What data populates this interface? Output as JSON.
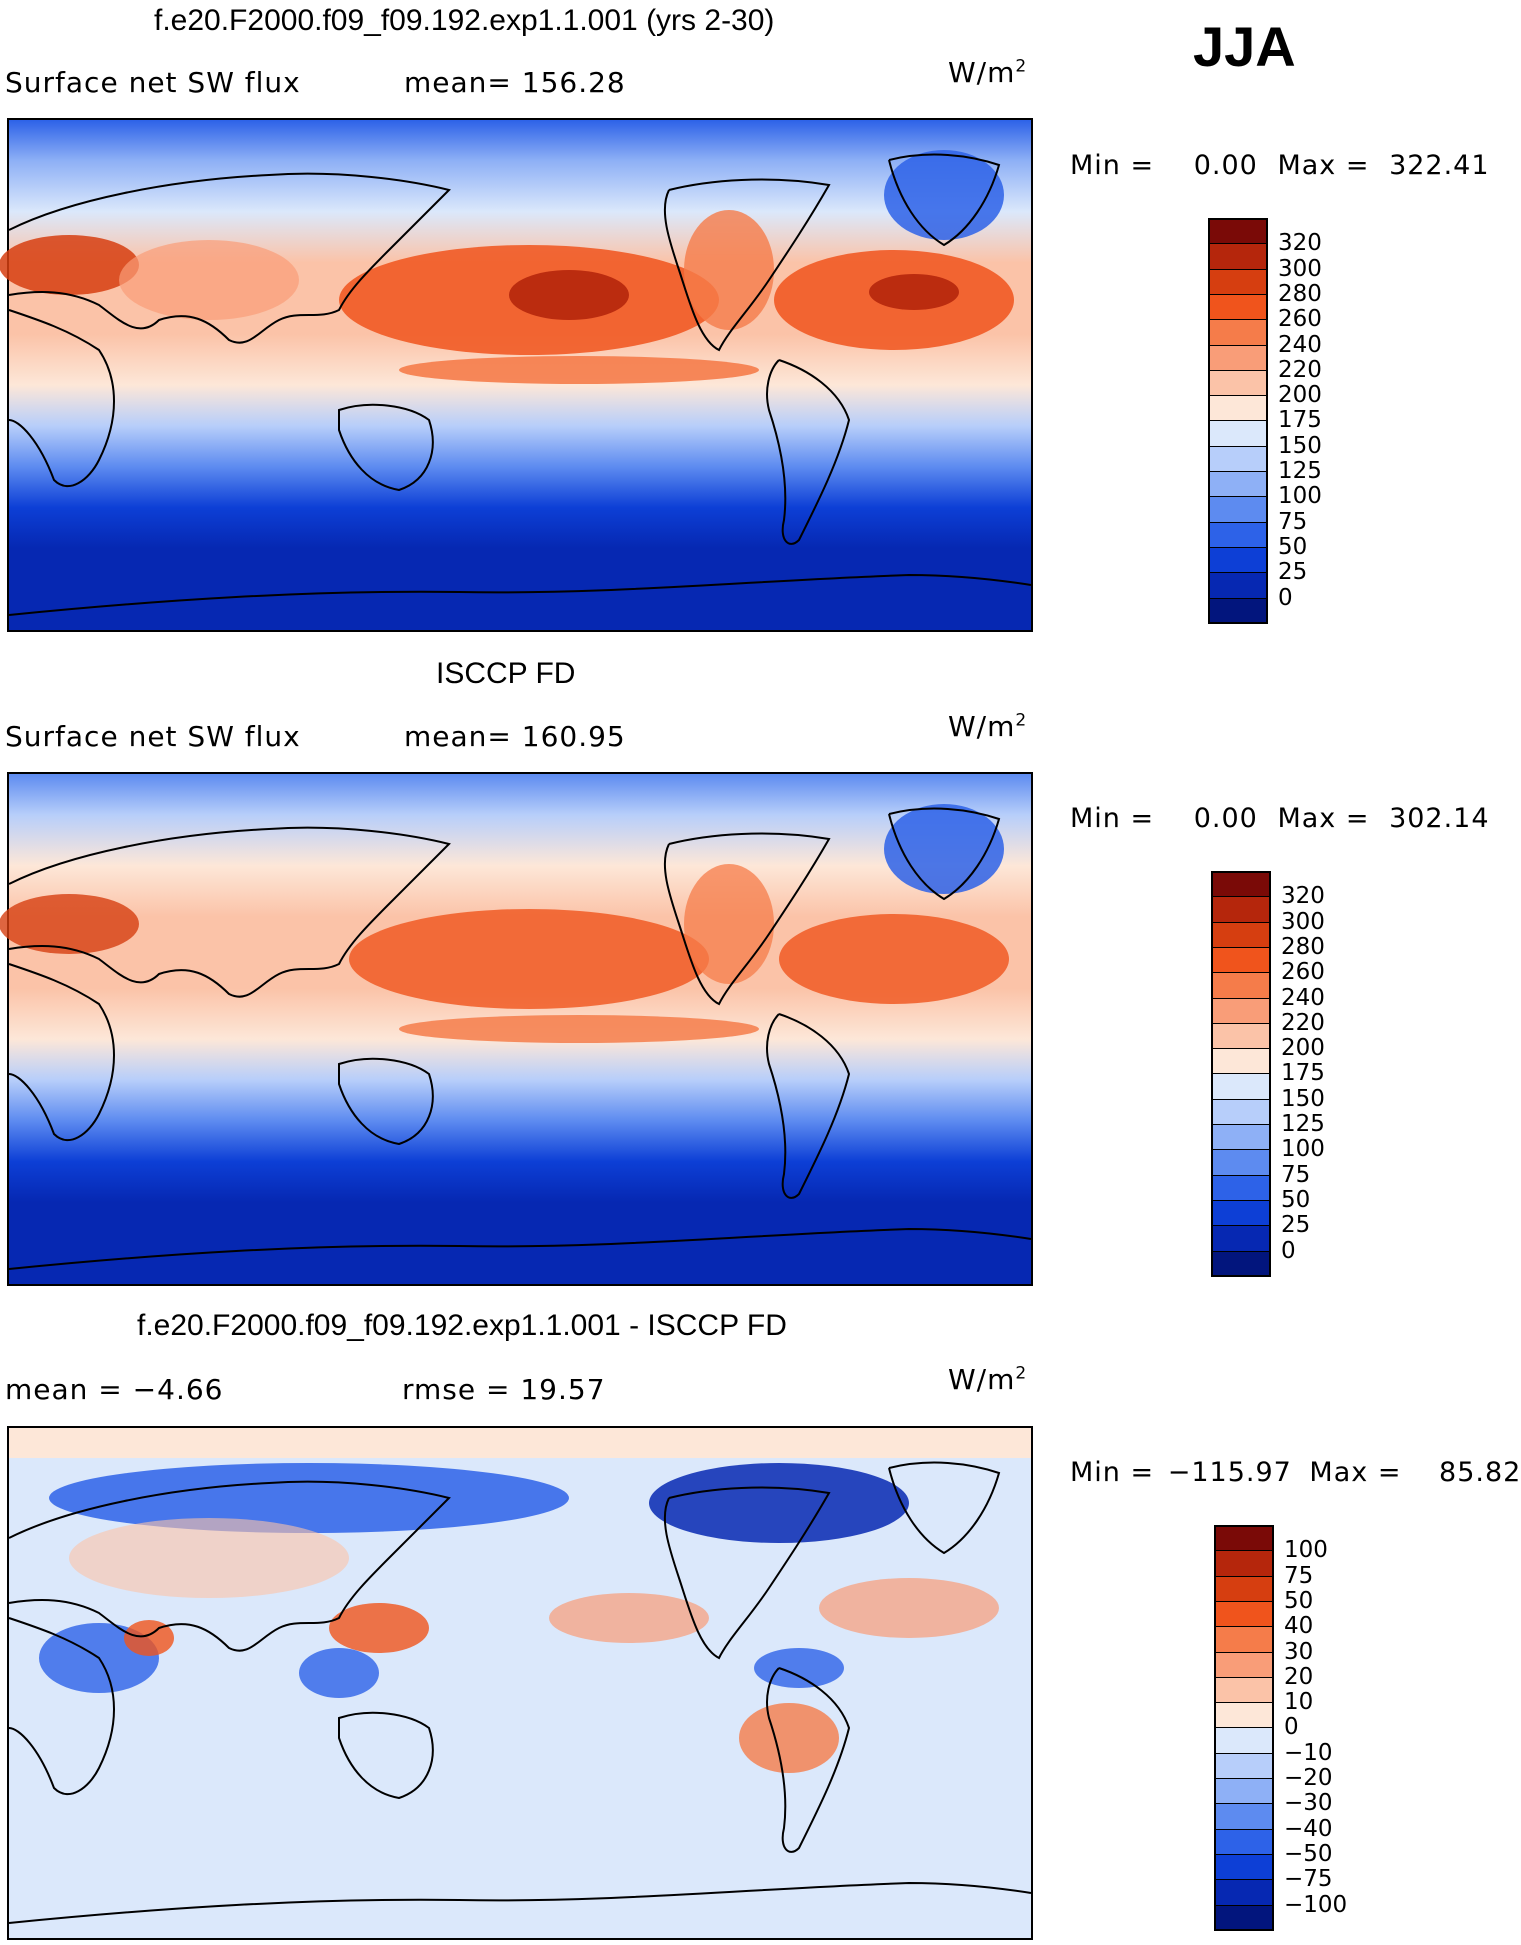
{
  "season": "JJA",
  "panels": [
    {
      "id": "model",
      "title": "f.e20.F2000.f09_f09.192.exp1.1.001 (yrs 2-30)",
      "left_label": "Surface net SW flux",
      "mid_label": "mean= 156.28",
      "units": "W/m",
      "units_exp": "2",
      "min_text": "Min =",
      "min_value": "0.00",
      "max_text": "Max =",
      "max_value": "322.41",
      "colorbar_labels": [
        "320",
        "300",
        "280",
        "260",
        "240",
        "220",
        "200",
        "175",
        "150",
        "125",
        "100",
        "75",
        "50",
        "25",
        "0"
      ]
    },
    {
      "id": "obs",
      "title": "ISCCP FD",
      "left_label": "Surface net SW flux",
      "mid_label": "mean= 160.95",
      "units": "W/m",
      "units_exp": "2",
      "min_text": "Min =",
      "min_value": "0.00",
      "max_text": "Max =",
      "max_value": "302.14",
      "colorbar_labels": [
        "320",
        "300",
        "280",
        "260",
        "240",
        "220",
        "200",
        "175",
        "150",
        "125",
        "100",
        "75",
        "50",
        "25",
        "0"
      ]
    },
    {
      "id": "diff",
      "title": "f.e20.F2000.f09_f09.192.exp1.1.001 - ISCCP FD",
      "left_label": "mean =  −4.66",
      "mid_label": "rmse =   19.57",
      "units": "W/m",
      "units_exp": "2",
      "min_text": "Min =",
      "min_value": "−115.97",
      "max_text": "Max =",
      "max_value": "85.82",
      "colorbar_labels": [
        "100",
        "75",
        "50",
        "40",
        "30",
        "20",
        "10",
        "0",
        "−10",
        "−20",
        "−30",
        "−40",
        "−50",
        "−75",
        "−100"
      ]
    }
  ],
  "palettes": {
    "abs": [
      "#7a0a07",
      "#b5260c",
      "#d63e10",
      "#f0541c",
      "#f57c4a",
      "#f99d78",
      "#fbc3a8",
      "#fde7d8",
      "#dbe8fb",
      "#b7cefa",
      "#8eb0f6",
      "#5d8bf0",
      "#2d62e8",
      "#0d3fd6",
      "#0628b2",
      "#02157d"
    ],
    "diff": [
      "#7a0a07",
      "#b5260c",
      "#d63e10",
      "#f0541c",
      "#f57c4a",
      "#f99d78",
      "#fbc3a8",
      "#fde7d8",
      "#dbe8fb",
      "#b7cefa",
      "#8eb0f6",
      "#5d8bf0",
      "#2d62e8",
      "#0d3fd6",
      "#0628b2",
      "#02157d"
    ]
  }
}
